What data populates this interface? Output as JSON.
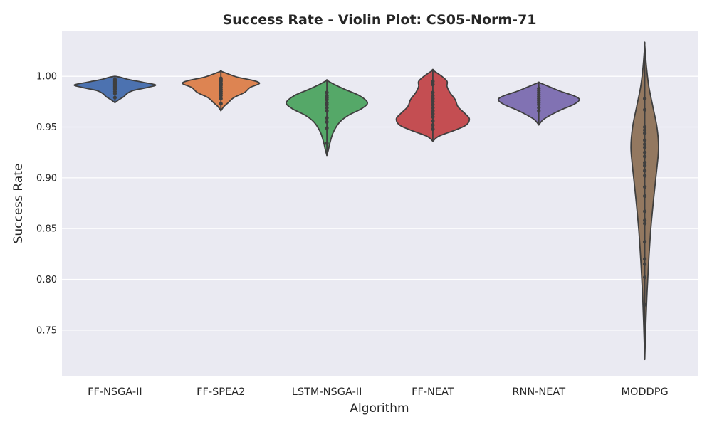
{
  "chart_data": {
    "type": "violin",
    "title": "Success Rate - Violin Plot: CS05-Norm-71",
    "xlabel": "Algorithm",
    "ylabel": "Success Rate",
    "ylim": [
      0.705,
      1.045
    ],
    "yticks": [
      0.75,
      0.8,
      0.85,
      0.9,
      0.95,
      1.0
    ],
    "ytick_labels": [
      "0.75",
      "0.80",
      "0.85",
      "0.90",
      "0.95",
      "1.00"
    ],
    "grid": true,
    "background": "#eaeaf2",
    "categories": [
      "FF-NSGA-II",
      "FF-SPEA2",
      "LSTM-NSGA-II",
      "FF-NEAT",
      "RNN-NEAT",
      "MODDPG"
    ],
    "series": [
      {
        "category": "FF-NSGA-II",
        "color": "#4c72b0",
        "range": [
          0.974,
          1.0
        ],
        "points": [
          0.979,
          0.983,
          0.985,
          0.987,
          0.988,
          0.989,
          0.99,
          0.991,
          0.992,
          0.993,
          0.994,
          0.995,
          0.996,
          0.997
        ],
        "profile": [
          [
            0.974,
            0.0
          ],
          [
            0.977,
            0.1
          ],
          [
            0.98,
            0.22
          ],
          [
            0.983,
            0.3
          ],
          [
            0.986,
            0.45
          ],
          [
            0.989,
            0.8
          ],
          [
            0.9915,
            1.0
          ],
          [
            0.994,
            0.7
          ],
          [
            0.997,
            0.32
          ],
          [
            0.999,
            0.14
          ],
          [
            1.0,
            0.0
          ]
        ]
      },
      {
        "category": "FF-SPEA2",
        "color": "#dd8452",
        "range": [
          0.966,
          1.005
        ],
        "points": [
          0.973,
          0.978,
          0.981,
          0.983,
          0.985,
          0.987,
          0.989,
          0.991,
          0.992,
          0.993,
          0.995,
          0.996,
          0.997,
          0.998
        ],
        "profile": [
          [
            0.966,
            0.0
          ],
          [
            0.97,
            0.07
          ],
          [
            0.974,
            0.18
          ],
          [
            0.979,
            0.32
          ],
          [
            0.984,
            0.58
          ],
          [
            0.989,
            0.72
          ],
          [
            0.993,
            0.95
          ],
          [
            0.996,
            0.78
          ],
          [
            0.999,
            0.42
          ],
          [
            1.002,
            0.2
          ],
          [
            1.005,
            0.0
          ]
        ]
      },
      {
        "category": "LSTM-NSGA-II",
        "color": "#55a868",
        "range": [
          0.922,
          0.996
        ],
        "points": [
          0.934,
          0.949,
          0.955,
          0.959,
          0.966,
          0.969,
          0.972,
          0.974,
          0.977,
          0.979,
          0.981,
          0.984
        ],
        "profile": [
          [
            0.922,
            0.0
          ],
          [
            0.928,
            0.04
          ],
          [
            0.935,
            0.08
          ],
          [
            0.945,
            0.16
          ],
          [
            0.955,
            0.32
          ],
          [
            0.962,
            0.55
          ],
          [
            0.968,
            0.85
          ],
          [
            0.974,
            1.0
          ],
          [
            0.981,
            0.8
          ],
          [
            0.987,
            0.45
          ],
          [
            0.992,
            0.18
          ],
          [
            0.996,
            0.0
          ]
        ]
      },
      {
        "category": "FF-NEAT",
        "color": "#c44e52",
        "range": [
          0.936,
          1.006
        ],
        "points": [
          0.948,
          0.952,
          0.956,
          0.96,
          0.963,
          0.966,
          0.969,
          0.972,
          0.975,
          0.978,
          0.981,
          0.984,
          0.992,
          0.995
        ],
        "profile": [
          [
            0.936,
            0.0
          ],
          [
            0.941,
            0.15
          ],
          [
            0.947,
            0.55
          ],
          [
            0.952,
            0.82
          ],
          [
            0.958,
            0.9
          ],
          [
            0.963,
            0.8
          ],
          [
            0.97,
            0.62
          ],
          [
            0.977,
            0.55
          ],
          [
            0.984,
            0.42
          ],
          [
            0.99,
            0.35
          ],
          [
            0.995,
            0.35
          ],
          [
            1.0,
            0.22
          ],
          [
            1.006,
            0.0
          ]
        ]
      },
      {
        "category": "RNN-NEAT",
        "color": "#8172b3",
        "range": [
          0.952,
          0.994
        ],
        "points": [
          0.966,
          0.969,
          0.972,
          0.974,
          0.976,
          0.978,
          0.98,
          0.982,
          0.984,
          0.986,
          0.988
        ],
        "profile": [
          [
            0.952,
            0.0
          ],
          [
            0.957,
            0.1
          ],
          [
            0.962,
            0.3
          ],
          [
            0.967,
            0.55
          ],
          [
            0.972,
            0.85
          ],
          [
            0.977,
            1.0
          ],
          [
            0.981,
            0.85
          ],
          [
            0.985,
            0.55
          ],
          [
            0.989,
            0.3
          ],
          [
            0.992,
            0.12
          ],
          [
            0.994,
            0.0
          ]
        ]
      },
      {
        "category": "MODDPG",
        "color": "#937860",
        "range": [
          0.721,
          1.031
        ],
        "points": [
          0.775,
          0.802,
          0.815,
          0.82,
          0.837,
          0.855,
          0.858,
          0.867,
          0.882,
          0.891,
          0.902,
          0.907,
          0.912,
          0.915,
          0.921,
          0.925,
          0.93,
          0.933,
          0.937,
          0.944,
          0.947,
          0.95,
          0.967,
          0.978
        ],
        "profile": [
          [
            0.721,
            0.0
          ],
          [
            0.76,
            0.03
          ],
          [
            0.79,
            0.06
          ],
          [
            0.82,
            0.1
          ],
          [
            0.85,
            0.15
          ],
          [
            0.88,
            0.22
          ],
          [
            0.91,
            0.3
          ],
          [
            0.93,
            0.34
          ],
          [
            0.95,
            0.3
          ],
          [
            0.97,
            0.2
          ],
          [
            0.99,
            0.1
          ],
          [
            1.01,
            0.04
          ],
          [
            1.031,
            0.0
          ]
        ]
      }
    ]
  }
}
